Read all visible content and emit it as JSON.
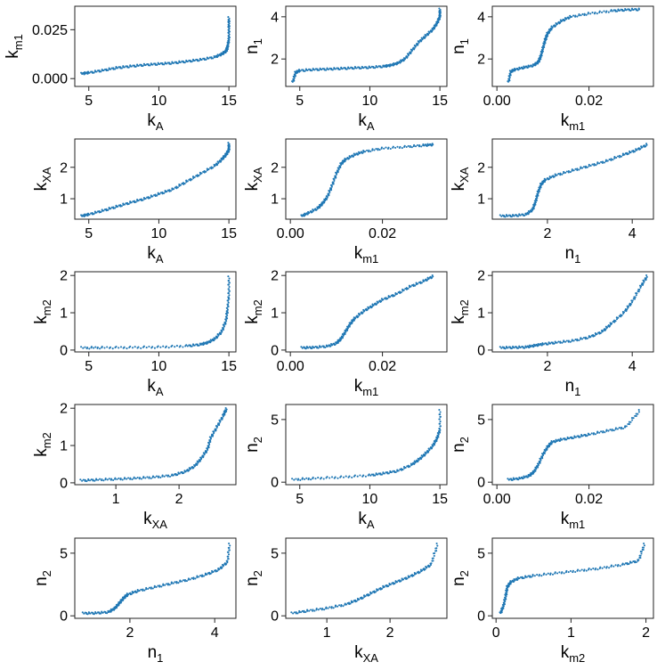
{
  "figure": {
    "rows": 5,
    "cols": 3,
    "point_color": "#1f77b4"
  },
  "chart_data": [
    {
      "type": "scatter",
      "xvar": "k_A",
      "yvar": "k_m1",
      "xlabel": {
        "main": "k",
        "sub": "A"
      },
      "ylabel": {
        "main": "k",
        "sub": "m1"
      },
      "xlim": [
        4.0,
        15.5
      ],
      "ylim": [
        -0.004,
        0.037
      ],
      "xticks": [
        5,
        10,
        15
      ],
      "yticks": [
        0.0,
        0.025
      ],
      "ytick_labels": [
        "0.000",
        "0.025"
      ],
      "x": [
        4.5,
        5.0,
        6.0,
        7.0,
        8.0,
        9.0,
        10.0,
        11.0,
        12.0,
        13.0,
        14.0,
        14.5,
        14.8,
        14.9,
        15.0,
        15.0,
        15.0
      ],
      "y": [
        0.0025,
        0.003,
        0.0042,
        0.0055,
        0.0063,
        0.007,
        0.0075,
        0.008,
        0.0088,
        0.0097,
        0.011,
        0.0125,
        0.014,
        0.016,
        0.02,
        0.026,
        0.031
      ]
    },
    {
      "type": "scatter",
      "xvar": "k_A",
      "yvar": "n_1",
      "xlabel": {
        "main": "k",
        "sub": "A"
      },
      "ylabel": {
        "main": "n",
        "sub": "1"
      },
      "xlim": [
        4.0,
        15.5
      ],
      "ylim": [
        0.7,
        4.5
      ],
      "xticks": [
        5,
        10,
        15
      ],
      "yticks": [
        2,
        4
      ],
      "ytick_labels": [
        "2",
        "4"
      ],
      "x": [
        4.5,
        4.7,
        5.0,
        6.0,
        7.0,
        8.0,
        9.0,
        10.0,
        11.0,
        11.5,
        12.0,
        12.5,
        13.0,
        13.5,
        14.0,
        14.5,
        14.8,
        15.0,
        15.0
      ],
      "y": [
        0.9,
        1.35,
        1.45,
        1.5,
        1.52,
        1.55,
        1.58,
        1.6,
        1.65,
        1.7,
        1.8,
        2.0,
        2.4,
        2.8,
        3.1,
        3.4,
        3.7,
        4.0,
        4.35
      ]
    },
    {
      "type": "scatter",
      "xvar": "k_m1",
      "yvar": "n_1",
      "xlabel": {
        "main": "k",
        "sub": "m1"
      },
      "ylabel": {
        "main": "n",
        "sub": "1"
      },
      "xlim": [
        -0.001,
        0.034
      ],
      "ylim": [
        0.7,
        4.5
      ],
      "xticks": [
        0.0,
        0.02
      ],
      "yticks": [
        2,
        4
      ],
      "xtick_labels": [
        "0.00",
        "0.02"
      ],
      "ytick_labels": [
        "2",
        "4"
      ],
      "x": [
        0.0025,
        0.003,
        0.004,
        0.006,
        0.008,
        0.009,
        0.0095,
        0.01,
        0.0105,
        0.011,
        0.012,
        0.014,
        0.016,
        0.02,
        0.025,
        0.028,
        0.031
      ],
      "y": [
        0.9,
        1.4,
        1.5,
        1.6,
        1.7,
        1.85,
        2.1,
        2.5,
        2.9,
        3.2,
        3.5,
        3.8,
        4.0,
        4.15,
        4.28,
        4.33,
        4.35
      ]
    },
    {
      "type": "scatter",
      "xvar": "k_A",
      "yvar": "k_XA",
      "xlabel": {
        "main": "k",
        "sub": "A"
      },
      "ylabel": {
        "main": "k",
        "sub": "XA"
      },
      "xlim": [
        4.0,
        15.5
      ],
      "ylim": [
        0.35,
        2.9
      ],
      "xticks": [
        5,
        10,
        15
      ],
      "yticks": [
        1,
        2
      ],
      "ytick_labels": [
        "1",
        "2"
      ],
      "x": [
        4.5,
        5.0,
        6.0,
        7.0,
        8.0,
        9.0,
        10.0,
        11.0,
        12.0,
        13.0,
        14.0,
        14.5,
        14.8,
        15.0,
        15.0
      ],
      "y": [
        0.45,
        0.5,
        0.62,
        0.75,
        0.88,
        1.0,
        1.15,
        1.3,
        1.55,
        1.8,
        2.05,
        2.25,
        2.4,
        2.55,
        2.75
      ]
    },
    {
      "type": "scatter",
      "xvar": "k_m1",
      "yvar": "k_XA",
      "xlabel": {
        "main": "k",
        "sub": "m1"
      },
      "ylabel": {
        "main": "k",
        "sub": "XA"
      },
      "xlim": [
        -0.001,
        0.034
      ],
      "ylim": [
        0.35,
        2.9
      ],
      "xticks": [
        0.0,
        0.02
      ],
      "yticks": [
        1,
        2
      ],
      "xtick_labels": [
        "0.00",
        "0.02"
      ],
      "ytick_labels": [
        "1",
        "2"
      ],
      "x": [
        0.0025,
        0.004,
        0.006,
        0.007,
        0.008,
        0.009,
        0.01,
        0.011,
        0.012,
        0.014,
        0.016,
        0.02,
        0.025,
        0.029,
        0.031
      ],
      "y": [
        0.45,
        0.55,
        0.7,
        0.85,
        1.05,
        1.4,
        1.8,
        2.1,
        2.25,
        2.4,
        2.5,
        2.6,
        2.65,
        2.7,
        2.72
      ]
    },
    {
      "type": "scatter",
      "xvar": "n_1",
      "yvar": "k_XA",
      "xlabel": {
        "main": "n",
        "sub": "1"
      },
      "ylabel": {
        "main": "k",
        "sub": "XA"
      },
      "xlim": [
        0.7,
        4.5
      ],
      "ylim": [
        0.35,
        2.9
      ],
      "xticks": [
        2,
        4
      ],
      "yticks": [
        1,
        2
      ],
      "ytick_labels": [
        "1",
        "2"
      ],
      "x": [
        0.9,
        1.2,
        1.5,
        1.65,
        1.72,
        1.78,
        1.85,
        1.95,
        2.2,
        2.6,
        3.0,
        3.4,
        3.8,
        4.1,
        4.35
      ],
      "y": [
        0.45,
        0.46,
        0.5,
        0.65,
        0.9,
        1.2,
        1.45,
        1.6,
        1.75,
        1.9,
        2.05,
        2.2,
        2.4,
        2.55,
        2.72
      ]
    },
    {
      "type": "scatter",
      "xvar": "k_A",
      "yvar": "k_m2",
      "xlabel": {
        "main": "k",
        "sub": "A"
      },
      "ylabel": {
        "main": "k",
        "sub": "m2"
      },
      "xlim": [
        4.0,
        15.5
      ],
      "ylim": [
        -0.05,
        2.1
      ],
      "xticks": [
        5,
        10,
        15
      ],
      "yticks": [
        0,
        1,
        2
      ],
      "ytick_labels": [
        "0",
        "1",
        "2"
      ],
      "x": [
        4.5,
        6.0,
        8.0,
        10.0,
        12.0,
        13.0,
        13.5,
        14.0,
        14.5,
        14.8,
        14.9,
        15.0,
        15.0
      ],
      "y": [
        0.06,
        0.065,
        0.07,
        0.08,
        0.11,
        0.15,
        0.2,
        0.3,
        0.5,
        0.8,
        1.1,
        1.5,
        1.95
      ]
    },
    {
      "type": "scatter",
      "xvar": "k_m1",
      "yvar": "k_m2",
      "xlabel": {
        "main": "k",
        "sub": "m1"
      },
      "ylabel": {
        "main": "k",
        "sub": "m2"
      },
      "xlim": [
        -0.001,
        0.034
      ],
      "ylim": [
        -0.05,
        2.1
      ],
      "xticks": [
        0.0,
        0.02
      ],
      "yticks": [
        0,
        1,
        2
      ],
      "xtick_labels": [
        "0.00",
        "0.02"
      ],
      "ytick_labels": [
        "0",
        "1",
        "2"
      ],
      "x": [
        0.0025,
        0.005,
        0.008,
        0.01,
        0.011,
        0.012,
        0.013,
        0.014,
        0.016,
        0.018,
        0.02,
        0.023,
        0.026,
        0.029,
        0.031
      ],
      "y": [
        0.06,
        0.07,
        0.1,
        0.18,
        0.3,
        0.5,
        0.7,
        0.85,
        1.05,
        1.2,
        1.35,
        1.5,
        1.7,
        1.85,
        1.98
      ]
    },
    {
      "type": "scatter",
      "xvar": "n_1",
      "yvar": "k_m2",
      "xlabel": {
        "main": "n",
        "sub": "1"
      },
      "ylabel": {
        "main": "k",
        "sub": "m2"
      },
      "xlim": [
        0.7,
        4.5
      ],
      "ylim": [
        -0.05,
        2.1
      ],
      "xticks": [
        2,
        4
      ],
      "yticks": [
        0,
        1,
        2
      ],
      "ytick_labels": [
        "0",
        "1",
        "2"
      ],
      "x": [
        0.9,
        1.2,
        1.5,
        1.7,
        1.9,
        2.2,
        2.6,
        3.0,
        3.3,
        3.5,
        3.8,
        4.0,
        4.2,
        4.35
      ],
      "y": [
        0.06,
        0.07,
        0.08,
        0.12,
        0.16,
        0.2,
        0.25,
        0.35,
        0.5,
        0.7,
        1.0,
        1.3,
        1.7,
        1.98
      ]
    },
    {
      "type": "scatter",
      "xvar": "k_XA",
      "yvar": "k_m2",
      "xlabel": {
        "main": "k",
        "sub": "XA"
      },
      "ylabel": {
        "main": "k",
        "sub": "m2"
      },
      "xlim": [
        0.35,
        2.9
      ],
      "ylim": [
        -0.05,
        2.1
      ],
      "xticks": [
        1,
        2
      ],
      "yticks": [
        0,
        1,
        2
      ],
      "ytick_labels": [
        "0",
        "1",
        "2"
      ],
      "x": [
        0.45,
        0.7,
        1.0,
        1.3,
        1.6,
        1.9,
        2.1,
        2.25,
        2.35,
        2.45,
        2.5,
        2.6,
        2.7,
        2.75
      ],
      "y": [
        0.06,
        0.08,
        0.1,
        0.12,
        0.15,
        0.2,
        0.3,
        0.45,
        0.65,
        0.9,
        1.2,
        1.5,
        1.8,
        1.98
      ]
    },
    {
      "type": "scatter",
      "xvar": "k_A",
      "yvar": "n_2",
      "xlabel": {
        "main": "k",
        "sub": "A"
      },
      "ylabel": {
        "main": "n",
        "sub": "2"
      },
      "xlim": [
        4.0,
        15.5
      ],
      "ylim": [
        -0.2,
        6.2
      ],
      "xticks": [
        5,
        10,
        15
      ],
      "yticks": [
        0,
        5
      ],
      "ytick_labels": [
        "0",
        "5"
      ],
      "x": [
        4.5,
        6.0,
        8.0,
        10.0,
        11.0,
        12.0,
        13.0,
        13.5,
        14.0,
        14.5,
        14.8,
        15.0,
        15.0
      ],
      "y": [
        0.2,
        0.3,
        0.4,
        0.55,
        0.7,
        0.9,
        1.4,
        1.8,
        2.3,
        2.9,
        3.5,
        4.2,
        5.7
      ]
    },
    {
      "type": "scatter",
      "xvar": "k_m1",
      "yvar": "n_2",
      "xlabel": {
        "main": "k",
        "sub": "m1"
      },
      "ylabel": {
        "main": "n",
        "sub": "2"
      },
      "xlim": [
        -0.001,
        0.034
      ],
      "ylim": [
        -0.2,
        6.2
      ],
      "xticks": [
        0.0,
        0.02
      ],
      "yticks": [
        0,
        5
      ],
      "xtick_labels": [
        "0.00",
        "0.02"
      ],
      "ytick_labels": [
        "0",
        "5"
      ],
      "x": [
        0.0025,
        0.005,
        0.007,
        0.008,
        0.009,
        0.01,
        0.011,
        0.012,
        0.014,
        0.017,
        0.02,
        0.024,
        0.028,
        0.031
      ],
      "y": [
        0.2,
        0.3,
        0.5,
        0.8,
        1.4,
        2.2,
        2.8,
        3.2,
        3.4,
        3.6,
        3.8,
        4.1,
        4.4,
        5.7
      ]
    },
    {
      "type": "scatter",
      "xvar": "n_1",
      "yvar": "n_2",
      "xlabel": {
        "main": "n",
        "sub": "1"
      },
      "ylabel": {
        "main": "n",
        "sub": "2"
      },
      "xlim": [
        0.7,
        4.5
      ],
      "ylim": [
        -0.2,
        6.2
      ],
      "xticks": [
        2,
        4
      ],
      "yticks": [
        0,
        5
      ],
      "ytick_labels": [
        "0",
        "5"
      ],
      "x": [
        0.9,
        1.2,
        1.5,
        1.65,
        1.75,
        1.85,
        1.95,
        2.2,
        2.6,
        3.0,
        3.4,
        3.8,
        4.1,
        4.3,
        4.35
      ],
      "y": [
        0.2,
        0.22,
        0.3,
        0.6,
        1.0,
        1.4,
        1.7,
        2.0,
        2.3,
        2.6,
        2.9,
        3.3,
        3.7,
        4.3,
        5.7
      ]
    },
    {
      "type": "scatter",
      "xvar": "k_XA",
      "yvar": "n_2",
      "xlabel": {
        "main": "k",
        "sub": "XA"
      },
      "ylabel": {
        "main": "n",
        "sub": "2"
      },
      "xlim": [
        0.35,
        2.9
      ],
      "ylim": [
        -0.2,
        6.2
      ],
      "xticks": [
        1,
        2
      ],
      "yticks": [
        0,
        5
      ],
      "ytick_labels": [
        "0",
        "5"
      ],
      "x": [
        0.45,
        0.7,
        1.0,
        1.3,
        1.5,
        1.7,
        1.9,
        2.1,
        2.3,
        2.5,
        2.65,
        2.75
      ],
      "y": [
        0.2,
        0.4,
        0.6,
        0.9,
        1.3,
        1.8,
        2.3,
        2.7,
        3.1,
        3.6,
        4.1,
        5.7
      ]
    },
    {
      "type": "scatter",
      "xvar": "k_m2",
      "yvar": "n_2",
      "xlabel": {
        "main": "k",
        "sub": "m2"
      },
      "ylabel": {
        "main": "n",
        "sub": "2"
      },
      "xlim": [
        -0.05,
        2.1
      ],
      "ylim": [
        -0.2,
        6.2
      ],
      "xticks": [
        0,
        1,
        2
      ],
      "yticks": [
        0,
        5
      ],
      "ytick_labels": [
        "0",
        "5"
      ],
      "x": [
        0.06,
        0.1,
        0.13,
        0.15,
        0.2,
        0.3,
        0.5,
        0.8,
        1.1,
        1.4,
        1.7,
        1.9,
        1.98
      ],
      "y": [
        0.2,
        0.8,
        1.6,
        2.3,
        2.7,
        3.0,
        3.2,
        3.4,
        3.6,
        3.8,
        4.1,
        4.4,
        5.7
      ]
    }
  ]
}
